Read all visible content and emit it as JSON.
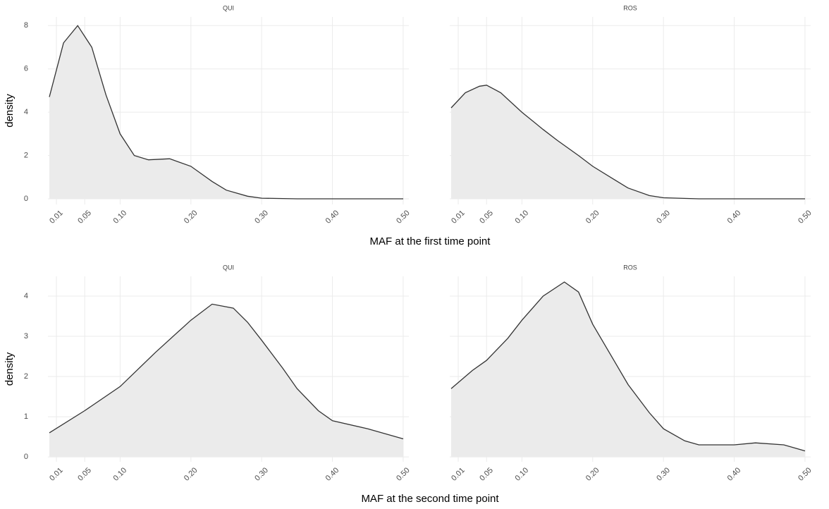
{
  "chart_data": [
    {
      "type": "area",
      "title": "QUI",
      "xlabel": "MAF at the first time point",
      "ylabel": "density",
      "color": "#ebebeb",
      "line_color": "#333333",
      "grid": true,
      "x": [
        0,
        0.02,
        0.04,
        0.06,
        0.08,
        0.1,
        0.12,
        0.14,
        0.17,
        0.2,
        0.23,
        0.25,
        0.28,
        0.3,
        0.35,
        0.4,
        0.45,
        0.5
      ],
      "values": [
        4.7,
        7.2,
        8.0,
        7.0,
        4.8,
        3.0,
        2.0,
        1.8,
        1.85,
        1.5,
        0.8,
        0.4,
        0.12,
        0.03,
        0,
        0,
        0,
        0
      ],
      "xlim": [
        -0.002,
        0.508
      ],
      "ylim": [
        -0.26,
        8.4
      ],
      "xticks": [
        0.01,
        0.05,
        {
          "value": 0.1,
          "label": "0.10"
        },
        {
          "value": 0.2,
          "label": "0.20"
        },
        {
          "value": 0.3,
          "label": "0.30"
        },
        {
          "value": 0.4,
          "label": "0.40"
        },
        {
          "value": 0.5,
          "label": "0.50"
        }
      ],
      "yticks": [
        0,
        2,
        4,
        6,
        8
      ]
    },
    {
      "type": "area",
      "title": "ROS",
      "color": "#ebebeb",
      "line_color": "#333333",
      "grid": true,
      "x": [
        0,
        0.02,
        0.04,
        0.05,
        0.07,
        0.1,
        0.13,
        0.15,
        0.18,
        0.2,
        0.23,
        0.25,
        0.28,
        0.3,
        0.35,
        0.4,
        0.45,
        0.5
      ],
      "values": [
        4.2,
        4.9,
        5.2,
        5.25,
        4.9,
        4.0,
        3.2,
        2.7,
        2.0,
        1.5,
        0.9,
        0.5,
        0.15,
        0.05,
        0,
        0,
        0,
        0
      ],
      "xlim": [
        -0.002,
        0.508
      ],
      "ylim": [
        -0.26,
        8.4
      ],
      "xticks": [
        0.01,
        0.05,
        {
          "value": 0.1,
          "label": "0.10"
        },
        {
          "value": 0.2,
          "label": "0.20"
        },
        {
          "value": 0.3,
          "label": "0.30"
        },
        {
          "value": 0.4,
          "label": "0.40"
        },
        {
          "value": 0.5,
          "label": "0.50"
        }
      ],
      "yticks": [
        0,
        2,
        4,
        6,
        8
      ]
    },
    {
      "type": "area",
      "title": "QUI",
      "xlabel": "MAF at the second time point",
      "ylabel": "density",
      "color": "#ebebeb",
      "line_color": "#333333",
      "grid": true,
      "x": [
        0,
        0.05,
        0.1,
        0.15,
        0.2,
        0.23,
        0.26,
        0.28,
        0.3,
        0.33,
        0.35,
        0.38,
        0.4,
        0.45,
        0.5
      ],
      "values": [
        0.6,
        1.15,
        1.75,
        2.6,
        3.4,
        3.8,
        3.7,
        3.35,
        2.9,
        2.2,
        1.7,
        1.15,
        0.9,
        0.7,
        0.45
      ],
      "xlim": [
        -0.002,
        0.508
      ],
      "ylim": [
        -0.12,
        4.49
      ],
      "xticks": [
        0.01,
        0.05,
        {
          "value": 0.1,
          "label": "0.10"
        },
        {
          "value": 0.2,
          "label": "0.20"
        },
        {
          "value": 0.3,
          "label": "0.30"
        },
        {
          "value": 0.4,
          "label": "0.40"
        },
        {
          "value": 0.5,
          "label": "0.50"
        }
      ],
      "yticks": [
        0,
        1,
        2,
        3,
        4
      ]
    },
    {
      "type": "area",
      "title": "ROS",
      "color": "#ebebeb",
      "line_color": "#333333",
      "grid": true,
      "x": [
        0,
        0.03,
        0.05,
        0.08,
        0.1,
        0.13,
        0.16,
        0.18,
        0.2,
        0.23,
        0.25,
        0.28,
        0.3,
        0.33,
        0.35,
        0.4,
        0.43,
        0.47,
        0.5
      ],
      "values": [
        1.7,
        2.15,
        2.4,
        2.95,
        3.4,
        4.0,
        4.35,
        4.1,
        3.3,
        2.4,
        1.8,
        1.1,
        0.7,
        0.4,
        0.3,
        0.3,
        0.35,
        0.3,
        0.15
      ],
      "xlim": [
        -0.002,
        0.508
      ],
      "ylim": [
        -0.12,
        4.49
      ],
      "xticks": [
        0.01,
        0.05,
        {
          "value": 0.1,
          "label": "0.10"
        },
        {
          "value": 0.2,
          "label": "0.20"
        },
        {
          "value": 0.3,
          "label": "0.30"
        },
        {
          "value": 0.4,
          "label": "0.40"
        },
        {
          "value": 0.5,
          "label": "0.50"
        }
      ],
      "yticks": [
        0,
        1,
        2,
        3,
        4
      ]
    }
  ]
}
